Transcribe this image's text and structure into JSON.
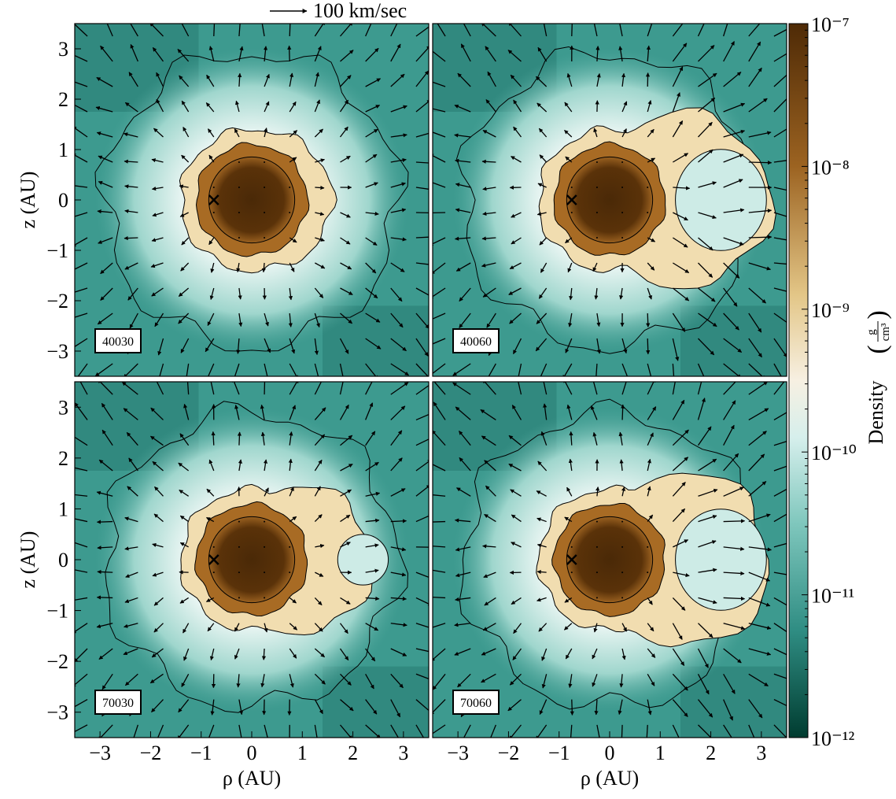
{
  "chart_data": [
    {
      "type": "density-map",
      "label": "40030",
      "xlim": [
        -3.5,
        3.5
      ],
      "ylim": [
        -3.5,
        3.5
      ],
      "ylabel": "z (AU)",
      "yticks": [
        {
          "value": -3,
          "label": "−3"
        },
        {
          "value": -2,
          "label": "−2"
        },
        {
          "value": -1,
          "label": "−1"
        },
        0,
        1,
        2,
        3
      ],
      "star": {
        "x": -0.75,
        "y": 0
      }
    },
    {
      "type": "density-map",
      "label": "40060",
      "xlim": [
        -3.5,
        3.5
      ],
      "ylim": [
        -3.5,
        3.5
      ],
      "star": {
        "x": -0.75,
        "y": 0
      }
    },
    {
      "type": "density-map",
      "label": "70030",
      "xlim": [
        -3.5,
        3.5
      ],
      "ylim": [
        -3.5,
        3.5
      ],
      "ylabel": "z (AU)",
      "xlabel": "ρ (AU)",
      "yticks": [
        {
          "value": -3,
          "label": "−3"
        },
        {
          "value": -2,
          "label": "−2"
        },
        {
          "value": -1,
          "label": "−1"
        },
        0,
        1,
        2,
        3
      ],
      "xticks": [
        {
          "value": -3,
          "label": "−3"
        },
        {
          "value": -2,
          "label": "−2"
        },
        {
          "value": -1,
          "label": "−1"
        },
        0,
        1,
        2,
        3
      ],
      "star": {
        "x": -0.75,
        "y": 0
      }
    },
    {
      "type": "density-map",
      "label": "70060",
      "xlim": [
        -3.5,
        3.5
      ],
      "ylim": [
        -3.5,
        3.5
      ],
      "xlabel": "ρ (AU)",
      "xticks": [
        {
          "value": -3,
          "label": "−3"
        },
        {
          "value": -2,
          "label": "−2"
        },
        {
          "value": -1,
          "label": "−1"
        },
        0,
        1,
        2,
        3
      ],
      "star": {
        "x": -0.75,
        "y": 0
      }
    }
  ],
  "colorbar": {
    "label": "Density",
    "unit_num": "g",
    "unit_den": "cm³",
    "scale": "log",
    "lim": [
      1e-12,
      1e-07
    ],
    "ticks": [
      {
        "value": 1e-12,
        "label": "10⁻¹²"
      },
      {
        "value": 1e-11,
        "label": "10⁻¹¹"
      },
      {
        "value": 1e-10,
        "label": "10⁻¹⁰"
      },
      {
        "value": 1e-09,
        "label": "10⁻⁹"
      },
      {
        "value": 1e-08,
        "label": "10⁻⁸"
      },
      {
        "value": 1e-07,
        "label": "10⁻⁷"
      }
    ]
  },
  "velocity_key": "100 km/sec"
}
